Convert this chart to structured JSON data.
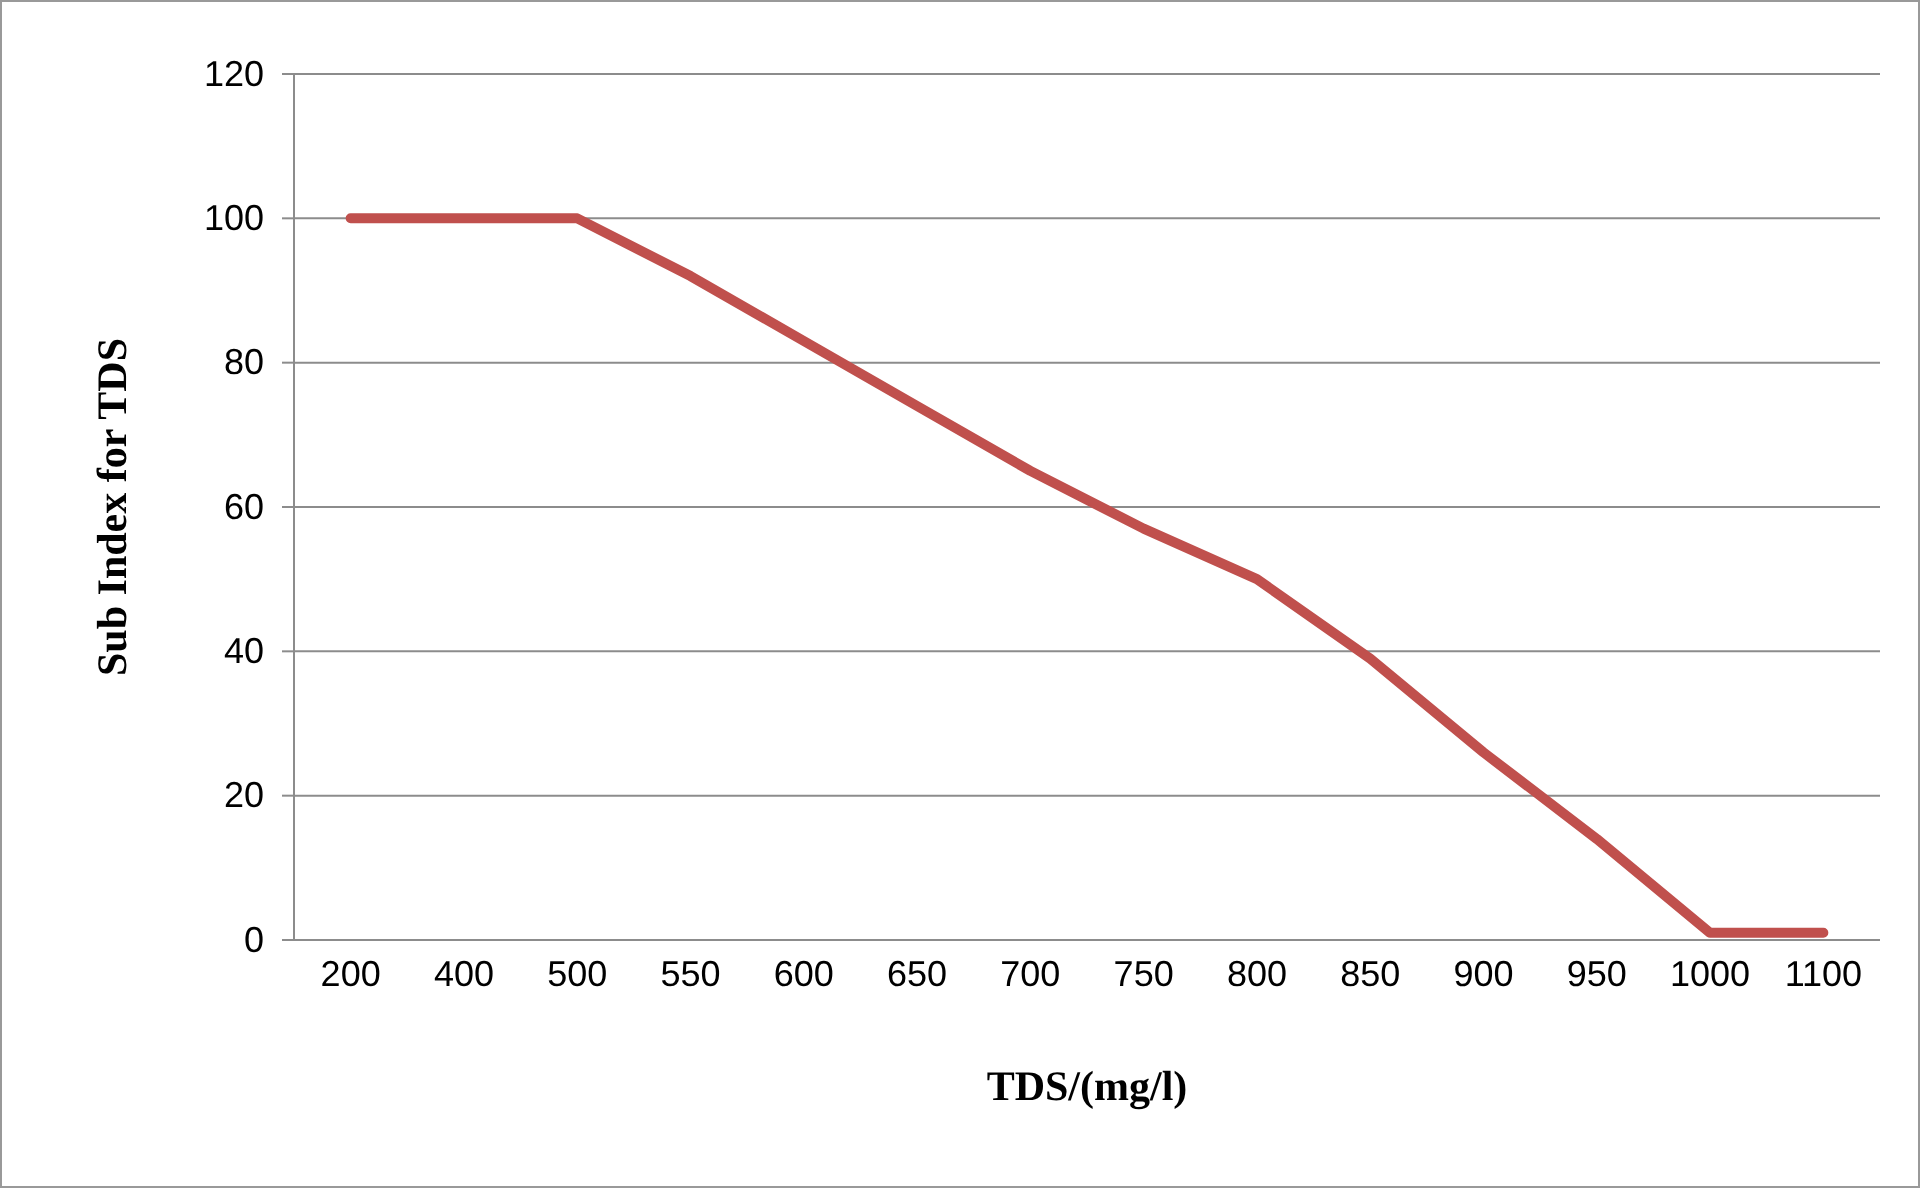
{
  "chart_data": {
    "type": "line",
    "xlabel": "TDS/(mg/l)",
    "ylabel": "Sub Index for TDS",
    "categories": [
      "200",
      "400",
      "500",
      "550",
      "600",
      "650",
      "700",
      "750",
      "800",
      "850",
      "900",
      "950",
      "1000",
      "1100"
    ],
    "series": [
      {
        "color": "#c0504d",
        "values": [
          100,
          100,
          100,
          92,
          83,
          74,
          65,
          57,
          50,
          39,
          26,
          14,
          1,
          1
        ]
      }
    ],
    "ylim": [
      0,
      120
    ],
    "yticks": [
      0,
      20,
      40,
      60,
      80,
      100,
      120
    ],
    "grid": "y",
    "marker": "none",
    "line_style": "solid"
  }
}
